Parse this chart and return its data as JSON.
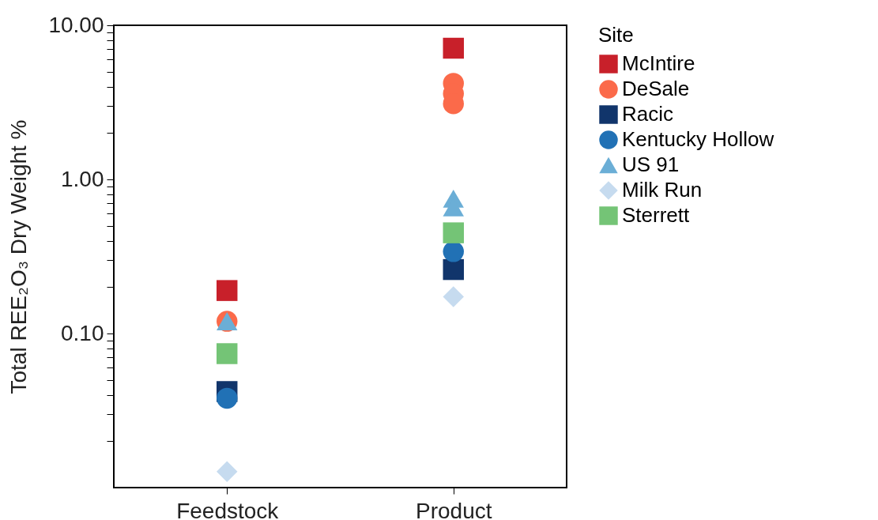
{
  "chart_data": {
    "type": "scatter",
    "ylabel": "Total REE₂O₃ Dry Weight %",
    "legend_title": "Site",
    "legend": "right",
    "log": true,
    "grid": false,
    "categories": [
      "Feedstock",
      "Product"
    ],
    "ylim": [
      0.01,
      10
    ],
    "yticks": [
      {
        "value": 0.02,
        "label": null
      },
      {
        "value": 0.03,
        "label": null
      },
      {
        "value": 0.04,
        "label": null
      },
      {
        "value": 0.05,
        "label": null
      },
      {
        "value": 0.06,
        "label": null
      },
      {
        "value": 0.07,
        "label": null
      },
      {
        "value": 0.08,
        "label": null
      },
      {
        "value": 0.09,
        "label": null
      },
      {
        "value": 0.1,
        "label": "0.10"
      },
      {
        "value": 0.2,
        "label": null
      },
      {
        "value": 0.3,
        "label": null
      },
      {
        "value": 0.4,
        "label": null
      },
      {
        "value": 0.5,
        "label": null
      },
      {
        "value": 0.6,
        "label": null
      },
      {
        "value": 0.7,
        "label": null
      },
      {
        "value": 0.8,
        "label": null
      },
      {
        "value": 0.9,
        "label": null
      },
      {
        "value": 1,
        "label": "1.00"
      },
      {
        "value": 2,
        "label": null
      },
      {
        "value": 3,
        "label": null
      },
      {
        "value": 4,
        "label": null
      },
      {
        "value": 5,
        "label": null
      },
      {
        "value": 6,
        "label": null
      },
      {
        "value": 7,
        "label": null
      },
      {
        "value": 8,
        "label": null
      },
      {
        "value": 9,
        "label": null
      },
      {
        "value": 10,
        "label": "10.00"
      }
    ],
    "series": [
      {
        "name": "McIntire",
        "color": "#c8202a",
        "marker": "square",
        "x": [
          "Feedstock",
          "Product"
        ],
        "values": [
          0.19,
          7.1
        ]
      },
      {
        "name": "DeSale",
        "color": "#fb6a4a",
        "marker": "circle",
        "x": [
          "Feedstock",
          "Product",
          "Product",
          "Product"
        ],
        "values": [
          0.12,
          4.2,
          3.6,
          3.1
        ]
      },
      {
        "name": "Racic",
        "color": "#11356b",
        "marker": "square",
        "x": [
          "Feedstock",
          "Product"
        ],
        "values": [
          0.042,
          0.26
        ]
      },
      {
        "name": "Kentucky Hollow",
        "color": "#2171b5",
        "marker": "circle",
        "x": [
          "Feedstock",
          "Product"
        ],
        "values": [
          0.038,
          0.34
        ]
      },
      {
        "name": "US 91",
        "color": "#6baed6",
        "marker": "triangle",
        "x": [
          "Feedstock",
          "Product",
          "Product"
        ],
        "values": [
          0.12,
          0.75,
          0.66
        ]
      },
      {
        "name": "Milk Run",
        "color": "#c6dbef",
        "marker": "diamond",
        "x": [
          "Feedstock",
          "Product"
        ],
        "values": [
          0.0127,
          0.173
        ]
      },
      {
        "name": "Sterrett",
        "color": "#74c476",
        "marker": "square",
        "x": [
          "Feedstock",
          "Product"
        ],
        "values": [
          0.074,
          0.45
        ]
      }
    ]
  }
}
